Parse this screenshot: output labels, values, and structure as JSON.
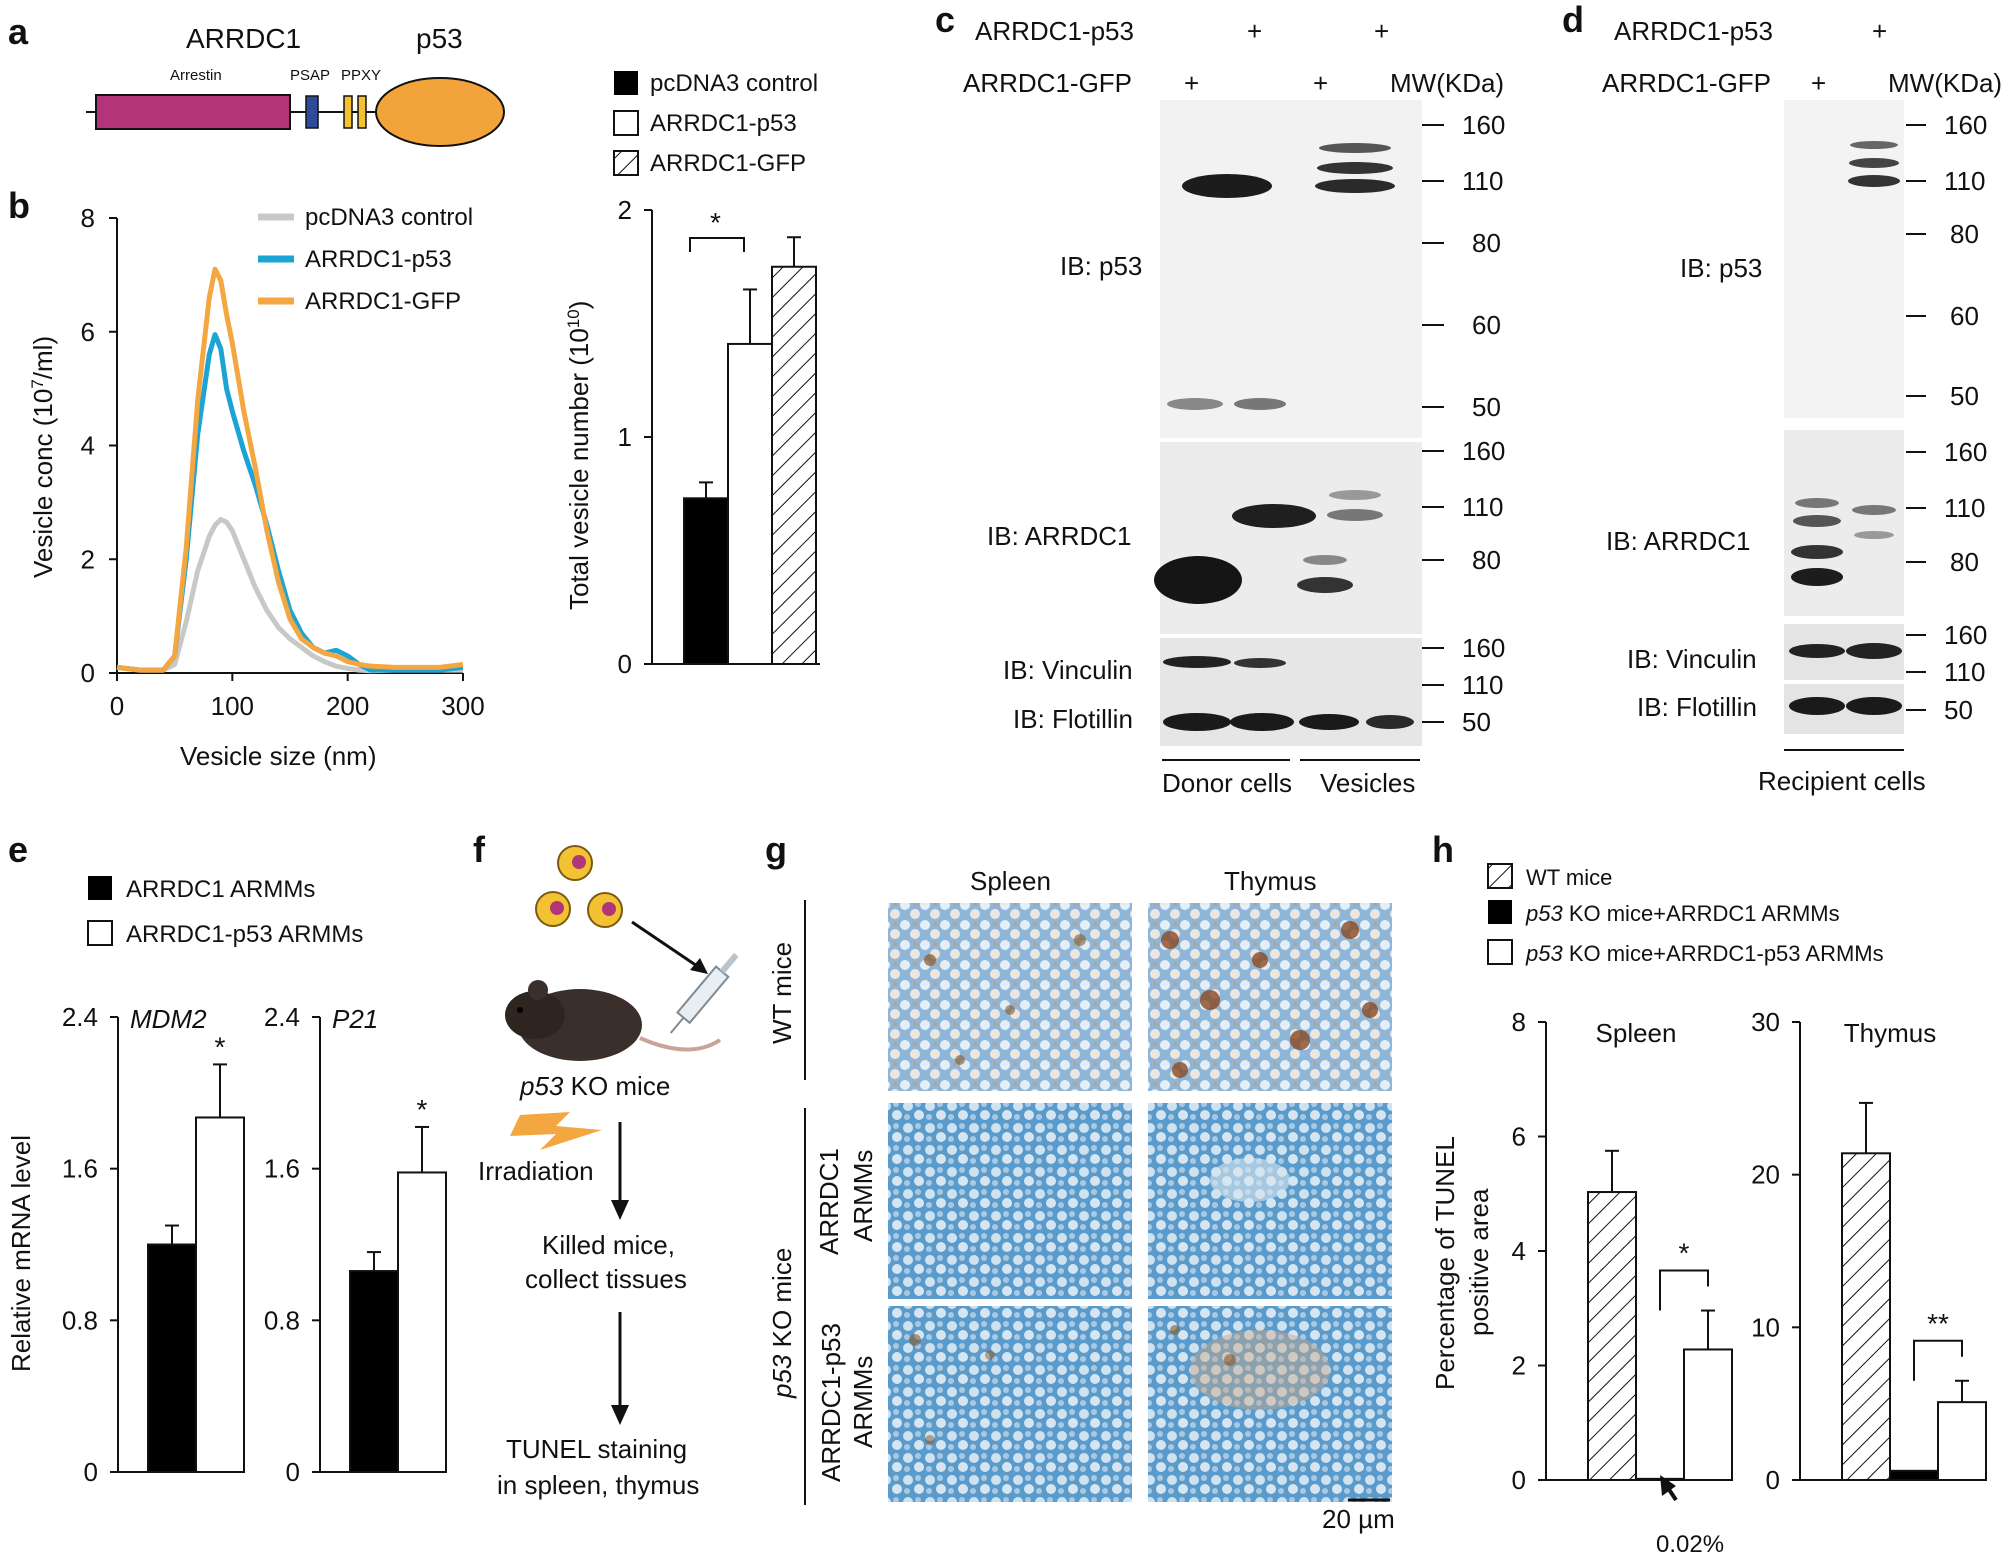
{
  "colors": {
    "pink": "#b2357a",
    "blue_psap": "#2e4a9a",
    "yellow_ppxy": "#f3c232",
    "orange_p53": "#f2a43a",
    "gray": "#c8c8c8",
    "cyan": "#1ba4d4",
    "orange_gfp": "#f4a640",
    "ihc_blue": "#4a8fbf",
    "ihc_brown": "#8b5a2b"
  },
  "panels": {
    "a": {
      "label": "a",
      "protein_left": "ARRDC1",
      "protein_right": "p53",
      "domain_arrestin": "Arrestin",
      "domain_psap": "PSAP",
      "domain_ppxy": "PPXY"
    },
    "b": {
      "label": "b",
      "legend": [
        "pcDNA3 control",
        "ARRDC1-p53",
        "ARRDC1-GFP"
      ],
      "bar_legend": [
        "pcDNA3 control",
        "ARRDC1-p53",
        "ARRDC1-GFP"
      ],
      "sig": "*"
    },
    "c": {
      "label": "c",
      "row1": "ARRDC1-p53",
      "row2": "ARRDC1-GFP",
      "mw": "MW(KDa)",
      "plus": "+",
      "ib": [
        "IB: p53",
        "IB: ARRDC1",
        "IB: Vinculin",
        "IB: Flotillin"
      ],
      "mw_p53": [
        "160",
        "110",
        "80",
        "60",
        "50"
      ],
      "mw_arrdc1": [
        "160",
        "110",
        "80"
      ],
      "mw_vinc": [
        "160",
        "110"
      ],
      "mw_flot": [
        "50"
      ],
      "group1": "Donor cells",
      "group2": "Vesicles"
    },
    "d": {
      "label": "d",
      "row1": "ARRDC1-p53",
      "row2": "ARRDC1-GFP",
      "mw": "MW(KDa)",
      "plus": "+",
      "ib": [
        "IB: p53",
        "IB: ARRDC1",
        "IB: Vinculin",
        "IB: Flotillin"
      ],
      "mw_p53": [
        "160",
        "110",
        "80",
        "60",
        "50"
      ],
      "mw_arrdc1": [
        "160",
        "110",
        "80"
      ],
      "mw_vinc": [
        "160",
        "110"
      ],
      "mw_flot": [
        "50"
      ],
      "group": "Recipient cells"
    },
    "e": {
      "label": "e",
      "legend": [
        "ARRDC1 ARMMs",
        "ARRDC1-p53 ARMMs"
      ],
      "sig": "*"
    },
    "f": {
      "label": "f",
      "mouse_label_italic": "p53",
      "mouse_label_rest": " KO mice",
      "irradiation": "Irradiation",
      "step2_line1": "Killed mice,",
      "step2_line2": "collect tissues",
      "step3_line1": "TUNEL staining",
      "step3_line2": "in spleen, thymus"
    },
    "g": {
      "label": "g",
      "col1": "Spleen",
      "col2": "Thymus",
      "row_wt": "WT mice",
      "row_arrdc1_l1": "ARRDC1",
      "row_arrdc1_l2": "ARMMs",
      "row_p53_l1": "ARRDC1-p53",
      "row_p53_l2": "ARMMs",
      "group_italic": "p53",
      "group_rest": " KO mice",
      "scale": "20 µm"
    },
    "h": {
      "label": "h",
      "legend": [
        "WT mice",
        " KO mice+ARRDC1 ARMMs",
        " KO mice+ARRDC1-p53 ARMMs"
      ],
      "legend_italic": "p53",
      "ylabel1": "Percentage of TUNEL",
      "ylabel2": "positive area",
      "sig1": "*",
      "sig2": "**",
      "annotation": "0.02%"
    }
  },
  "chart_data": [
    {
      "id": "b-line",
      "type": "line",
      "title": "",
      "xlabel": "Vesicle size (nm)",
      "ylabel": "Vesicle conc (10^7/ml)",
      "ylabel_main": "Vesicle conc (10",
      "ylabel_sup": "7",
      "ylabel_tail": "/ml)",
      "xlim": [
        0,
        300
      ],
      "ylim": [
        0,
        8
      ],
      "xticks": [
        0,
        100,
        200,
        300
      ],
      "yticks": [
        0,
        2,
        4,
        6,
        8
      ],
      "x": [
        0,
        20,
        40,
        50,
        60,
        70,
        80,
        85,
        90,
        95,
        100,
        110,
        120,
        130,
        140,
        150,
        160,
        170,
        180,
        190,
        200,
        210,
        220,
        240,
        260,
        280,
        300
      ],
      "series": [
        {
          "name": "pcDNA3 control",
          "color": "#c8c8c8",
          "values": [
            0.1,
            0.05,
            0.05,
            0.15,
            0.9,
            1.8,
            2.4,
            2.6,
            2.7,
            2.65,
            2.5,
            2.0,
            1.5,
            1.1,
            0.8,
            0.6,
            0.45,
            0.3,
            0.2,
            0.12,
            0.08,
            0.05,
            0.04,
            0.05,
            0.05,
            0.05,
            0.05
          ]
        },
        {
          "name": "ARRDC1-p53",
          "color": "#1ba4d4",
          "values": [
            0.1,
            0.05,
            0.05,
            0.3,
            2.0,
            4.2,
            5.6,
            5.95,
            5.7,
            5.0,
            4.6,
            3.9,
            3.3,
            2.6,
            1.8,
            1.1,
            0.7,
            0.45,
            0.35,
            0.4,
            0.3,
            0.15,
            0.05,
            0.05,
            0.05,
            0.05,
            0.1
          ]
        },
        {
          "name": "ARRDC1-GFP",
          "color": "#f4a640",
          "values": [
            0.1,
            0.05,
            0.05,
            0.3,
            2.2,
            4.8,
            6.6,
            7.1,
            6.9,
            6.3,
            5.8,
            4.6,
            3.6,
            2.5,
            1.6,
            0.95,
            0.6,
            0.45,
            0.35,
            0.3,
            0.2,
            0.15,
            0.12,
            0.1,
            0.1,
            0.1,
            0.15
          ]
        }
      ]
    },
    {
      "id": "b-bar",
      "type": "bar",
      "ylabel": "Total vesicle number (10^10)",
      "ylabel_main": "Total vesicle number (10",
      "ylabel_sup": "10",
      "ylabel_tail": ")",
      "ylim": [
        0,
        2
      ],
      "yticks": [
        0,
        1,
        2
      ],
      "categories": [
        "pcDNA3 control",
        "ARRDC1-p53",
        "ARRDC1-GFP"
      ],
      "values": [
        0.73,
        1.41,
        1.75
      ],
      "errors": [
        0.07,
        0.24,
        0.13
      ],
      "fills": [
        "black",
        "white",
        "hatch"
      ]
    },
    {
      "id": "e-bars",
      "type": "bar",
      "ylabel": "Relative mRNA level",
      "ylim": [
        0,
        2.4
      ],
      "yticks": [
        "0",
        "0.8",
        "1.6",
        "2.4"
      ],
      "groups": [
        {
          "name": "MDM2",
          "values": [
            1.2,
            1.87
          ],
          "errors": [
            0.1,
            0.28
          ]
        },
        {
          "name": "P21",
          "values": [
            1.06,
            1.58
          ],
          "errors": [
            0.1,
            0.24
          ]
        }
      ],
      "series": [
        "ARRDC1 ARMMs",
        "ARRDC1-p53 ARMMs"
      ]
    },
    {
      "id": "h-bars",
      "type": "bar",
      "series": [
        "WT mice",
        "p53 KO mice+ARRDC1 ARMMs",
        "p53 KO mice+ARRDC1-p53 ARMMs"
      ],
      "groups": [
        {
          "name": "Spleen",
          "ylim": [
            0,
            8
          ],
          "yticks": [
            "0",
            "2",
            "4",
            "6",
            "8"
          ],
          "values": [
            5.03,
            0.02,
            2.28
          ],
          "errors": [
            0.72,
            0,
            0.68
          ]
        },
        {
          "name": "Thymus",
          "ylim": [
            0,
            30
          ],
          "yticks": [
            "0",
            "10",
            "20",
            "30"
          ],
          "values": [
            21.4,
            0.6,
            5.1
          ],
          "errors": [
            3.3,
            0,
            1.4
          ]
        }
      ]
    }
  ]
}
